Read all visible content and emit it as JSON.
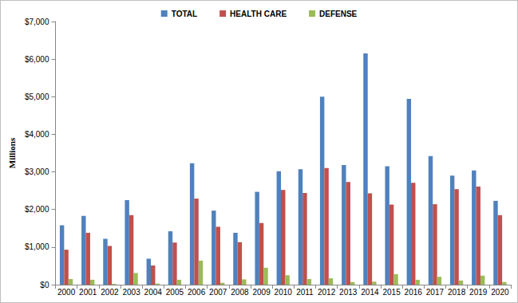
{
  "chart_data": {
    "type": "bar",
    "y_label": "Millions",
    "categories": [
      "2000",
      "2001",
      "2002",
      "2003",
      "2004",
      "2005",
      "2006",
      "2007",
      "2008",
      "2009",
      "2010",
      "2011",
      "2012",
      "2013",
      "2014",
      "2015",
      "2016",
      "2017",
      "2018",
      "2019",
      "2020"
    ],
    "series": [
      {
        "name": "TOTAL",
        "color": "#4f81bd",
        "values": [
          1580,
          1830,
          1220,
          2250,
          690,
          1420,
          3230,
          1970,
          1380,
          2470,
          3020,
          3070,
          5000,
          3180,
          6150,
          3150,
          4940,
          3420,
          2900,
          3040,
          2230
        ]
      },
      {
        "name": "HEALTH CARE",
        "color": "#c0504d",
        "values": [
          930,
          1380,
          1030,
          1850,
          510,
          1120,
          2290,
          1540,
          1130,
          1640,
          2520,
          2440,
          3100,
          2730,
          2430,
          2130,
          2710,
          2140,
          2540,
          2610,
          1850
        ]
      },
      {
        "name": "DEFENSE",
        "color": "#9bbb59",
        "values": [
          150,
          130,
          20,
          310,
          30,
          130,
          640,
          50,
          140,
          450,
          250,
          150,
          170,
          70,
          80,
          280,
          130,
          210,
          110,
          240,
          70
        ]
      }
    ],
    "ylim": [
      0,
      7000
    ],
    "yticks": [
      {
        "value": 0,
        "label": "$0"
      },
      {
        "value": 1000,
        "label": "$1,000"
      },
      {
        "value": 2000,
        "label": "$2,000"
      },
      {
        "value": 3000,
        "label": "$3,000"
      },
      {
        "value": 4000,
        "label": "$4,000"
      },
      {
        "value": 5000,
        "label": "$5,000"
      },
      {
        "value": 6000,
        "label": "$6,000"
      },
      {
        "value": 7000,
        "label": "$7,000"
      }
    ],
    "grid": false,
    "legend": "top"
  }
}
